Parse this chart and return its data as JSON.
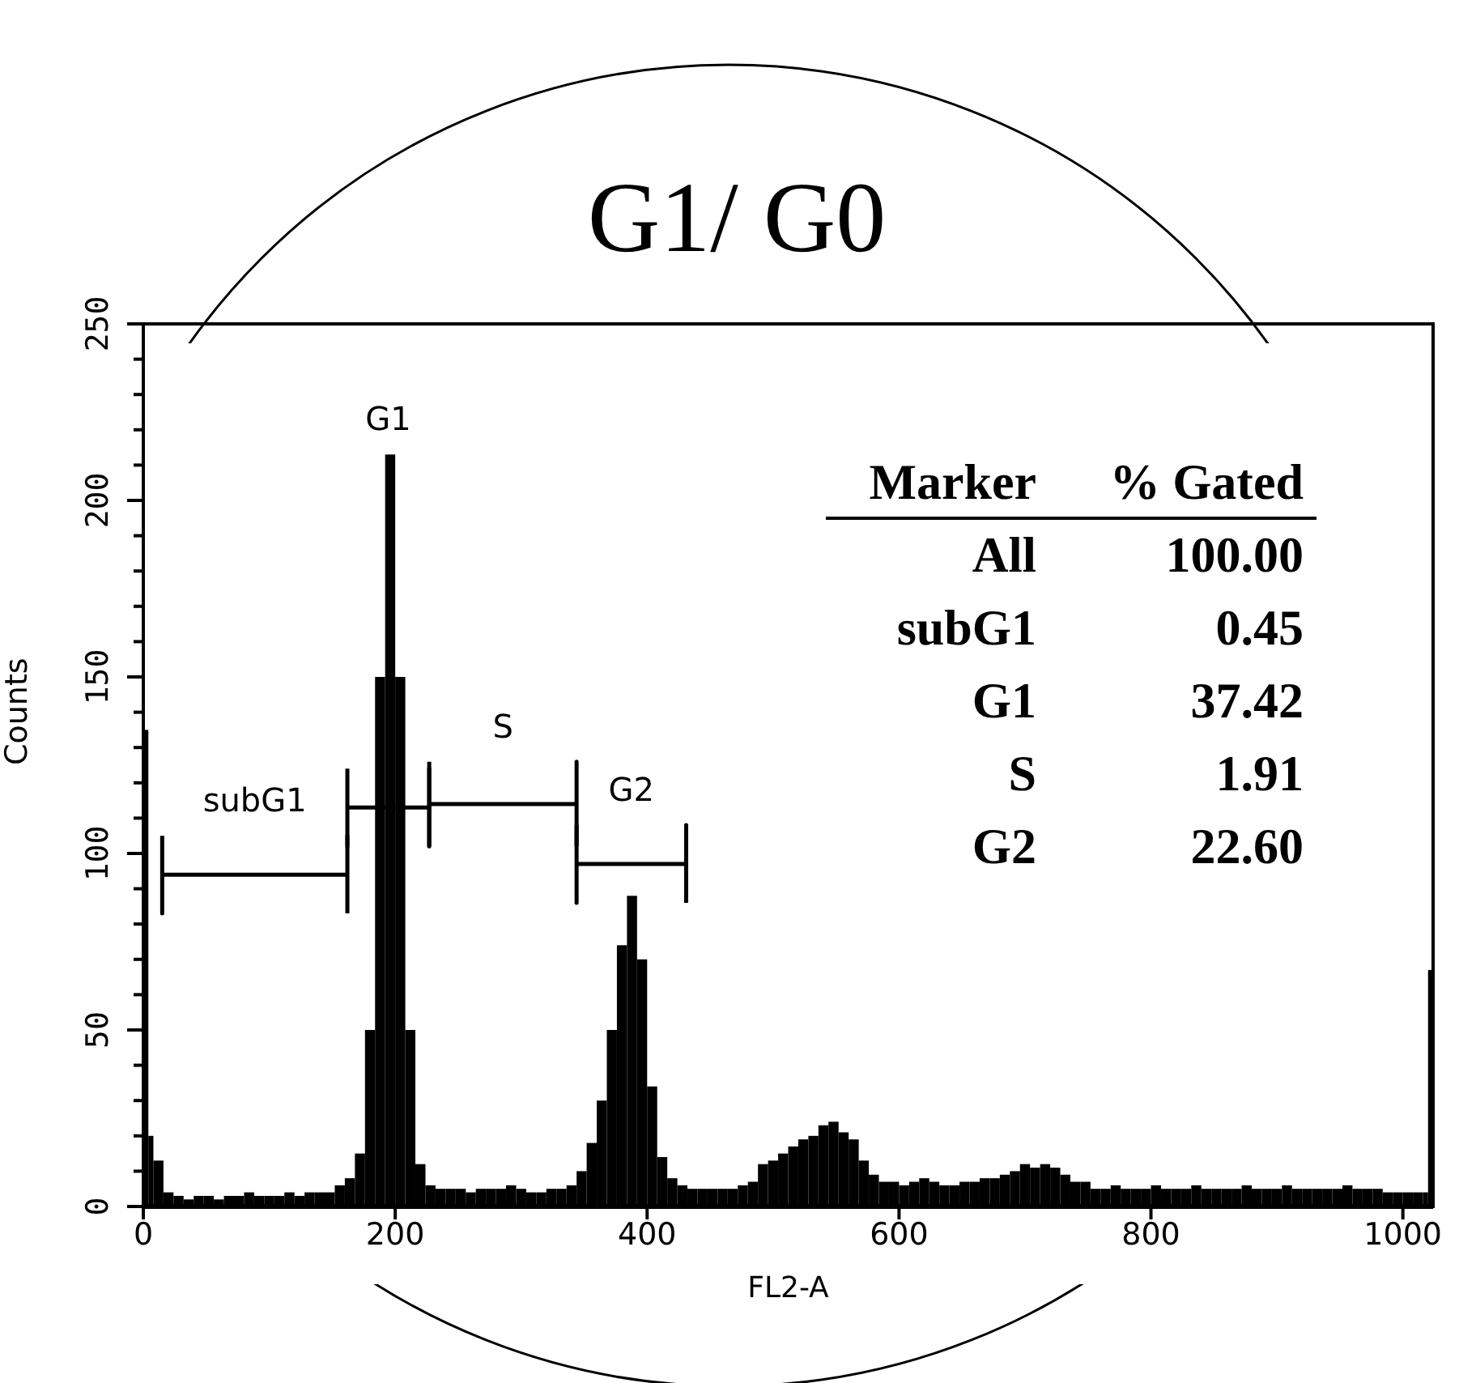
{
  "chart_data": {
    "type": "histogram",
    "title": "G1/ G0",
    "xlabel": "FL2-A",
    "ylabel": "Counts",
    "bins": [
      0,
      4,
      8,
      16,
      24,
      32,
      40,
      48,
      56,
      64,
      72,
      80,
      88,
      96,
      104,
      112,
      120,
      128,
      136,
      144,
      152,
      160,
      168,
      176,
      184,
      192,
      200,
      208,
      216,
      224,
      232,
      240,
      248,
      256,
      264,
      272,
      280,
      288,
      296,
      304,
      312,
      320,
      328,
      336,
      344,
      352,
      360,
      368,
      376,
      384,
      392,
      400,
      408,
      416,
      424,
      432,
      440,
      448,
      456,
      464,
      472,
      480,
      488,
      496,
      504,
      512,
      520,
      528,
      536,
      544,
      552,
      560,
      568,
      576,
      584,
      592,
      600,
      608,
      616,
      624,
      632,
      640,
      648,
      656,
      664,
      672,
      680,
      688,
      696,
      704,
      712,
      720,
      728,
      736,
      744,
      752,
      760,
      768,
      776,
      784,
      792,
      800,
      808,
      816,
      824,
      832,
      840,
      848,
      856,
      864,
      872,
      880,
      888,
      896,
      904,
      912,
      920,
      928,
      936,
      944,
      952,
      960,
      968,
      976,
      984,
      992,
      1000,
      1008,
      1016,
      1020,
      1024
    ],
    "values": [
      135,
      20,
      13,
      4,
      3,
      2,
      3,
      3,
      2,
      3,
      3,
      4,
      3,
      3,
      3,
      4,
      3,
      4,
      4,
      4,
      6,
      8,
      15,
      50,
      150,
      213,
      150,
      50,
      12,
      6,
      5,
      5,
      5,
      4,
      5,
      5,
      5,
      6,
      5,
      4,
      4,
      5,
      5,
      6,
      10,
      18,
      30,
      50,
      74,
      88,
      70,
      34,
      14,
      8,
      6,
      5,
      5,
      5,
      5,
      5,
      6,
      7,
      12,
      13,
      15,
      17,
      19,
      20,
      23,
      24,
      21,
      19,
      13,
      9,
      7,
      7,
      6,
      7,
      8,
      7,
      6,
      6,
      7,
      7,
      8,
      8,
      9,
      10,
      12,
      11,
      12,
      11,
      9,
      7,
      7,
      5,
      5,
      6,
      5,
      5,
      5,
      6,
      5,
      5,
      5,
      6,
      5,
      5,
      5,
      5,
      6,
      5,
      5,
      5,
      6,
      5,
      5,
      5,
      5,
      5,
      6,
      5,
      5,
      5,
      4,
      4,
      4,
      4,
      4,
      67
    ],
    "color": "#000000",
    "series": [
      {
        "type": "line",
        "color": "#000000",
        "x": [
          15,
          15,
          15,
          162,
          162,
          162
        ],
        "values": [
          105,
          83,
          94,
          94,
          105,
          83
        ]
      },
      {
        "type": "line",
        "color": "#000000",
        "x": [
          162,
          162,
          162,
          227,
          227,
          227
        ],
        "values": [
          124,
          102,
          113,
          113,
          124,
          102
        ]
      },
      {
        "type": "line",
        "color": "#000000",
        "x": [
          227,
          227,
          227,
          344,
          344,
          344
        ],
        "values": [
          126,
          102,
          114,
          114,
          126,
          102
        ]
      },
      {
        "type": "line",
        "color": "#000000",
        "x": [
          344,
          344,
          344,
          431,
          431,
          431
        ],
        "values": [
          108,
          86,
          97,
          97,
          108,
          86
        ]
      }
    ],
    "annotations": [
      "subG1",
      "G1",
      "S",
      "G2",
      "Marker",
      "% Gated",
      "All",
      "100.00",
      "subG1",
      "0.45",
      "G1",
      "37.42",
      "S",
      "1.91",
      "G2",
      "22.60"
    ],
    "xlim": [
      0,
      1024
    ],
    "xticks": [
      0,
      200,
      400,
      600,
      800,
      1000
    ],
    "ylim": [
      0,
      250
    ],
    "yticks": [
      0,
      {
        "value": 10,
        "label": null
      },
      {
        "value": 20,
        "label": null
      },
      {
        "value": 30,
        "label": null
      },
      {
        "value": 40,
        "label": null
      },
      50,
      {
        "value": 60,
        "label": null
      },
      {
        "value": 70,
        "label": null
      },
      {
        "value": 80,
        "label": null
      },
      {
        "value": 90,
        "label": null
      },
      100,
      {
        "value": 110,
        "label": null
      },
      {
        "value": 120,
        "label": null
      },
      {
        "value": 130,
        "label": null
      },
      {
        "value": 140,
        "label": null
      },
      150,
      {
        "value": 160,
        "label": null
      },
      {
        "value": 170,
        "label": null
      },
      {
        "value": 180,
        "label": null
      },
      {
        "value": 190,
        "label": null
      },
      200,
      {
        "value": 210,
        "label": null
      },
      {
        "value": 220,
        "label": null
      },
      {
        "value": 230,
        "label": null
      },
      {
        "value": 240,
        "label": null
      },
      250
    ],
    "grid": false
  }
}
